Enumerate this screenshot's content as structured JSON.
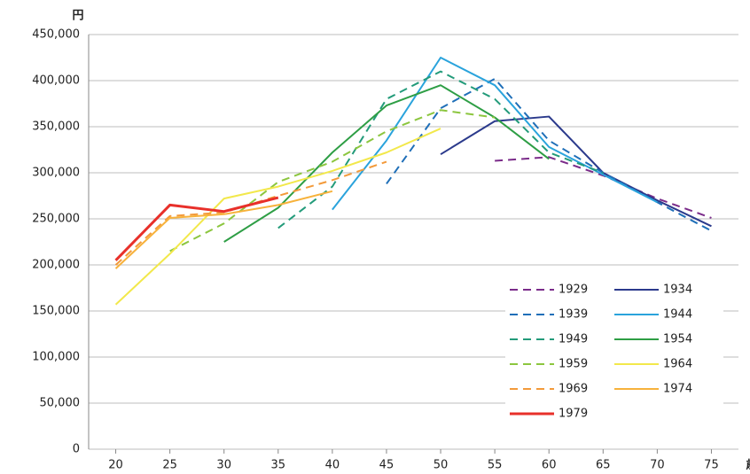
{
  "chart_data": {
    "type": "line",
    "y_unit": "円",
    "x_unit": "歳",
    "x": [
      20,
      25,
      30,
      35,
      40,
      45,
      50,
      55,
      60,
      65,
      70,
      75
    ],
    "xlim": [
      17.5,
      77.5
    ],
    "xticks": [
      20,
      25,
      30,
      35,
      40,
      45,
      50,
      55,
      60,
      65,
      70,
      75
    ],
    "ylim": [
      0,
      450000
    ],
    "yticks": [
      0,
      {
        "value": 50000,
        "label": "50,000"
      },
      {
        "value": 100000,
        "label": "100,000"
      },
      {
        "value": 150000,
        "label": "150,000"
      },
      {
        "value": 200000,
        "label": "200,000"
      },
      {
        "value": 250000,
        "label": "250,000"
      },
      {
        "value": 300000,
        "label": "300,000"
      },
      {
        "value": 350000,
        "label": "350,000"
      },
      {
        "value": 400000,
        "label": "400,000"
      },
      {
        "value": 450000,
        "label": "450,000"
      }
    ],
    "grid": true,
    "legend": "lower right",
    "series": [
      {
        "name": "1929",
        "color": "#7b2c8a",
        "dashed": true,
        "values": [
          null,
          null,
          null,
          null,
          null,
          null,
          null,
          313000,
          317000,
          297000,
          272000,
          251000
        ]
      },
      {
        "name": "1934",
        "color": "#2b3a8c",
        "dashed": false,
        "values": [
          null,
          null,
          null,
          null,
          null,
          null,
          320000,
          356000,
          361000,
          300000,
          270000,
          242000
        ]
      },
      {
        "name": "1939",
        "color": "#1f6fb8",
        "dashed": true,
        "values": [
          null,
          null,
          null,
          null,
          null,
          288000,
          370000,
          402000,
          335000,
          300000,
          268000,
          237000
        ]
      },
      {
        "name": "1944",
        "color": "#2aa3dc",
        "dashed": false,
        "values": [
          null,
          null,
          null,
          null,
          260000,
          335000,
          425000,
          395000,
          328000,
          298000,
          268000,
          null
        ]
      },
      {
        "name": "1949",
        "color": "#239b7a",
        "dashed": true,
        "values": [
          null,
          null,
          null,
          240000,
          285000,
          380000,
          410000,
          380000,
          322000,
          300000,
          null,
          null
        ]
      },
      {
        "name": "1954",
        "color": "#2e9e45",
        "dashed": false,
        "values": [
          null,
          null,
          225000,
          262000,
          322000,
          373000,
          395000,
          360000,
          315000,
          null,
          null,
          null
        ]
      },
      {
        "name": "1959",
        "color": "#8cc63f",
        "dashed": true,
        "values": [
          null,
          215000,
          245000,
          290000,
          312000,
          345000,
          368000,
          360000,
          null,
          null,
          null,
          null
        ]
      },
      {
        "name": "1964",
        "color": "#f2e84b",
        "dashed": false,
        "values": [
          157000,
          212000,
          272000,
          285000,
          302000,
          322000,
          348000,
          null,
          null,
          null,
          null,
          null
        ]
      },
      {
        "name": "1969",
        "color": "#f39a3a",
        "dashed": true,
        "values": [
          200000,
          253000,
          257000,
          275000,
          292000,
          312000,
          null,
          null,
          null,
          null,
          null,
          null
        ]
      },
      {
        "name": "1974",
        "color": "#f7b23b",
        "dashed": false,
        "values": [
          196000,
          251000,
          255000,
          265000,
          280000,
          null,
          null,
          null,
          null,
          null,
          null,
          null
        ]
      },
      {
        "name": "1979",
        "color": "#e8302a",
        "dashed": false,
        "line_width": 3,
        "values": [
          205000,
          265000,
          258000,
          273000,
          null,
          null,
          null,
          null,
          null,
          null,
          null,
          null
        ]
      }
    ]
  }
}
